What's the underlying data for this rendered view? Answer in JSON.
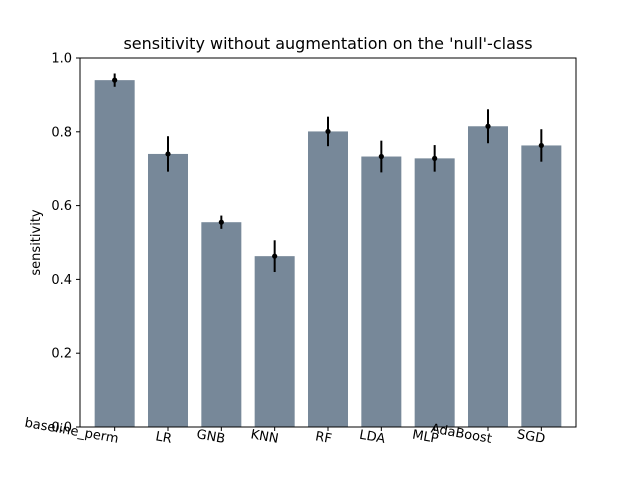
{
  "chart_data": {
    "type": "bar",
    "title": "sensitivity without augmentation on the 'null'-class",
    "xlabel": "",
    "ylabel": "sensitivity",
    "ylim": [
      0.0,
      1.0
    ],
    "yticks": [
      "0.0",
      "0.2",
      "0.4",
      "0.6",
      "0.8",
      "1.0"
    ],
    "categories": [
      "baseline_perm",
      "LR",
      "GNB",
      "KNN",
      "RF",
      "LDA",
      "MLP",
      "AdaBoost",
      "SGD"
    ],
    "values": [
      0.94,
      0.74,
      0.555,
      0.463,
      0.801,
      0.733,
      0.728,
      0.815,
      0.763
    ],
    "errors": [
      0.018,
      0.048,
      0.018,
      0.043,
      0.04,
      0.043,
      0.036,
      0.046,
      0.044
    ],
    "bar_color": "#778899",
    "error_color": "#000000",
    "grid": false,
    "legend": "none",
    "xtick_rotation": "slight"
  }
}
